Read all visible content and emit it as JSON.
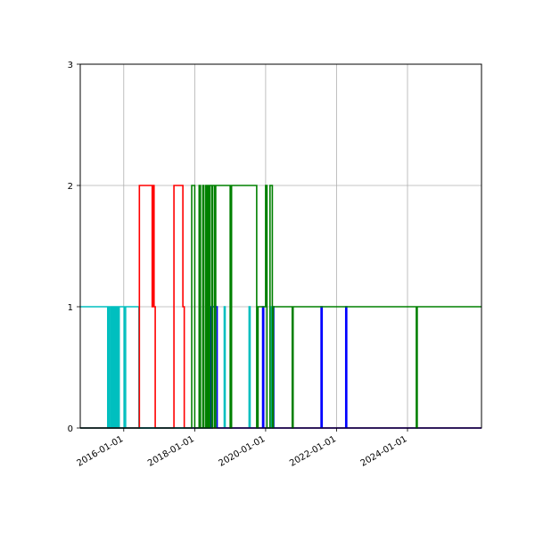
{
  "chart_data": {
    "type": "line",
    "title": "",
    "xlabel": "",
    "ylabel": "",
    "x_axis_type": "date",
    "xlim": [
      "2014-10-10",
      "2026-02-01"
    ],
    "ylim": [
      0,
      3
    ],
    "x_ticks": [
      "2016-01-01",
      "2018-01-01",
      "2020-01-01",
      "2022-01-01",
      "2024-01-01"
    ],
    "y_ticks": [
      "0",
      "1",
      "2",
      "3"
    ],
    "grid": true,
    "legend": "none",
    "step": "post",
    "series": [
      {
        "color": "#00bfbf",
        "x": [
          "2014-10-10",
          "2015-07-20",
          "2015-07-30",
          "2015-08-05",
          "2015-08-20",
          "2015-09-01",
          "2015-09-12",
          "2015-09-25",
          "2015-10-05",
          "2015-10-15",
          "2015-10-25",
          "2015-11-05",
          "2015-11-15",
          "2016-01-05",
          "2016-01-20",
          "2016-06-05",
          "2016-06-15",
          "2018-11-01",
          "2018-11-10",
          "2019-07-15",
          "2019-07-25",
          "2020-03-01",
          "2020-03-10",
          "2026-02-01"
        ],
        "y": [
          1,
          0,
          1,
          0,
          1,
          0,
          1,
          0,
          1,
          0,
          1,
          0,
          1,
          0,
          1,
          0,
          0,
          1,
          0,
          1,
          0,
          1,
          0,
          0
        ]
      },
      {
        "color": "#ff0000",
        "x": [
          "2014-10-10",
          "2016-06-10",
          "2016-10-20",
          "2016-10-30",
          "2016-11-08",
          "2016-11-20",
          "2017-06-01",
          "2017-09-01",
          "2017-09-15",
          "2018-01-01",
          "2026-02-01"
        ],
        "y": [
          0,
          2,
          1,
          2,
          1,
          0,
          2,
          1,
          0,
          0,
          0
        ]
      },
      {
        "color": "#0000ff",
        "x": [
          "2014-10-10",
          "2018-05-01",
          "2018-05-08",
          "2018-05-16",
          "2018-05-24",
          "2018-06-01",
          "2018-06-09",
          "2018-06-17",
          "2018-06-25",
          "2018-07-03",
          "2018-08-20",
          "2018-09-01",
          "2019-12-01",
          "2019-12-12",
          "2020-03-15",
          "2020-03-25",
          "2021-07-25",
          "2021-08-05",
          "2022-04-05",
          "2022-04-15",
          "2026-02-01"
        ],
        "y": [
          0,
          1,
          0,
          1,
          0,
          1,
          0,
          1,
          0,
          1,
          0,
          0,
          1,
          0,
          1,
          0,
          1,
          0,
          1,
          0,
          0
        ]
      },
      {
        "color": "#008000",
        "x": [
          "2014-10-10",
          "2017-12-01",
          "2017-12-20",
          "2018-01-01",
          "2018-02-15",
          "2018-03-01",
          "2018-03-25",
          "2018-04-05",
          "2018-04-25",
          "2018-05-05",
          "2018-05-15",
          "2018-05-25",
          "2018-06-05",
          "2018-06-25",
          "2018-07-05",
          "2018-07-25",
          "2018-08-05",
          "2019-01-01",
          "2019-01-15",
          "2019-10-01",
          "2019-10-15",
          "2020-01-01",
          "2020-01-15",
          "2020-02-15",
          "2020-03-10",
          "2020-03-20",
          "2020-04-01",
          "2020-10-01",
          "2020-10-10",
          "2024-04-01",
          "2024-04-10",
          "2026-02-01"
        ],
        "y": [
          0,
          2,
          2,
          0,
          2,
          0,
          2,
          0,
          2,
          0,
          2,
          0,
          2,
          0,
          2,
          0,
          2,
          0,
          2,
          0,
          1,
          2,
          0,
          2,
          0,
          1,
          1,
          0,
          1,
          0,
          1,
          1
        ]
      }
    ]
  }
}
